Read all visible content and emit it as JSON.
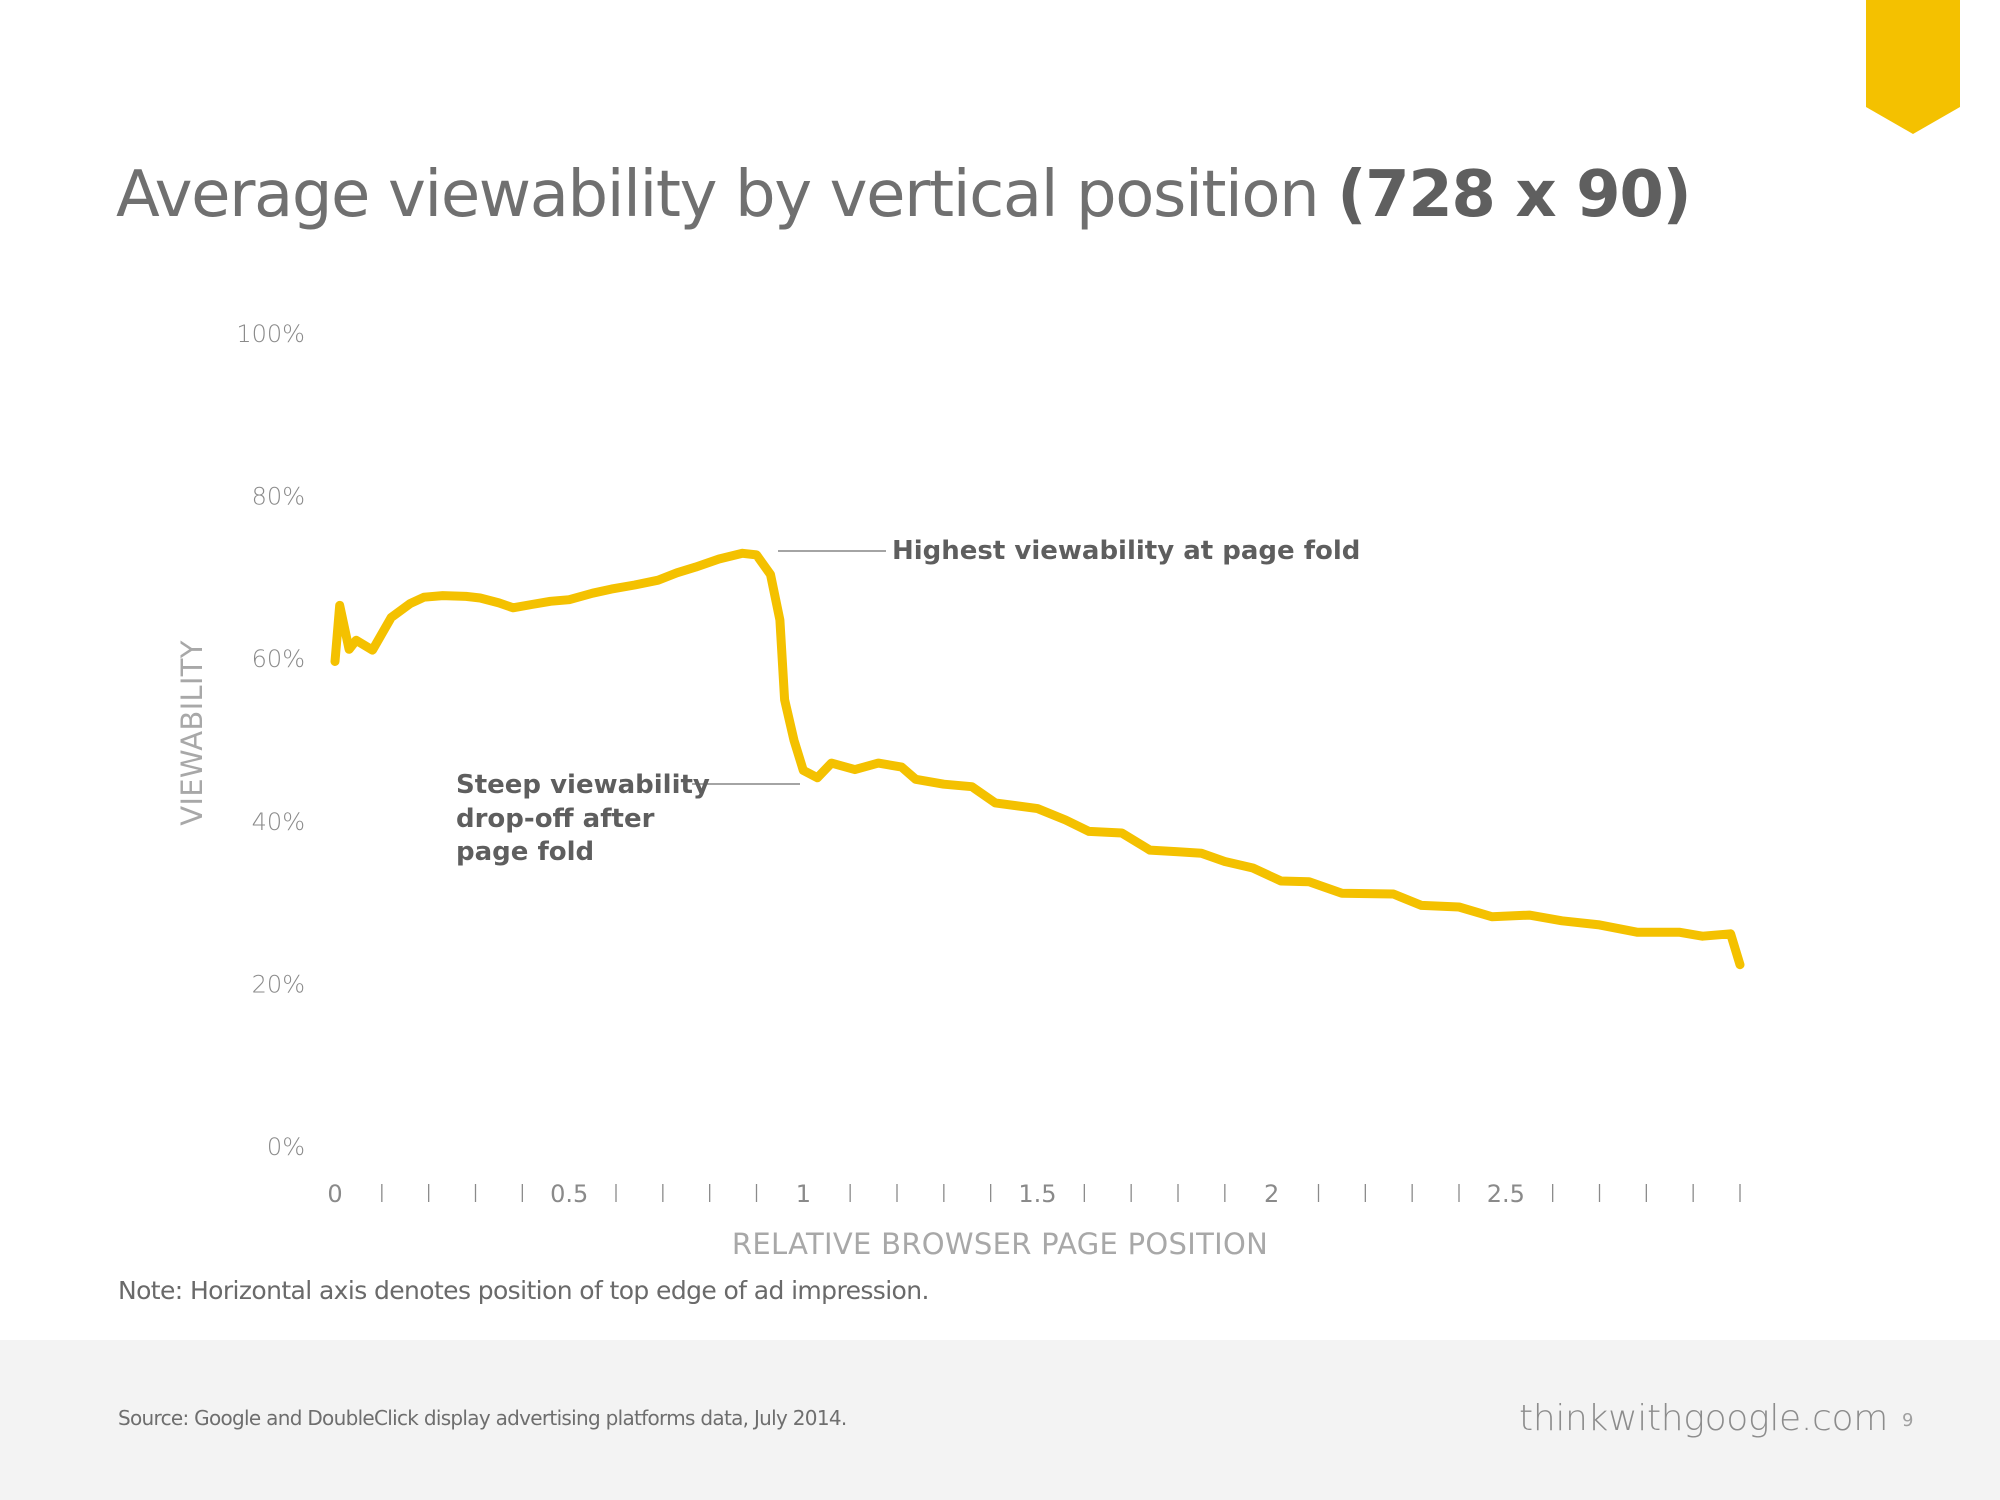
{
  "header": {
    "title_light": "Average viewability by vertical position ",
    "title_bold": "(728 x 90)",
    "accent_color": "#F4C100"
  },
  "note": "Note: Horizontal axis denotes position of top edge of ad impression.",
  "footer": {
    "source": "Source: Google and DoubleClick display advertising platforms data, July 2014.",
    "brand": "thinkwithgoogle.com",
    "page_number": "9"
  },
  "chart_data": {
    "type": "line",
    "title": "Average viewability by vertical position (728 x 90)",
    "xlabel": "RELATIVE BROWSER PAGE POSITION",
    "ylabel": "VIEWABILITY",
    "xlim": [
      0,
      3
    ],
    "ylim": [
      0,
      100
    ],
    "grid": false,
    "y_ticks": [
      0,
      20,
      40,
      60,
      80,
      100
    ],
    "y_tick_labels": [
      "0%",
      "20%",
      "40%",
      "60%",
      "80%",
      "100%"
    ],
    "x_major_ticks": [
      0,
      0.5,
      1,
      1.5,
      2,
      2.5
    ],
    "x_major_tick_labels": [
      "0",
      "0.5",
      "1",
      "1.5",
      "2",
      "2.5"
    ],
    "x_minor_tick_step": 0.1,
    "line_color": "#F4C100",
    "series": [
      {
        "name": "Viewability",
        "x": [
          0.0,
          0.01,
          0.03,
          0.045,
          0.08,
          0.12,
          0.16,
          0.19,
          0.23,
          0.28,
          0.31,
          0.35,
          0.38,
          0.42,
          0.46,
          0.5,
          0.55,
          0.59,
          0.64,
          0.69,
          0.73,
          0.77,
          0.82,
          0.87,
          0.9,
          0.93,
          0.95,
          0.96,
          0.98,
          1.0,
          1.03,
          1.06,
          1.11,
          1.16,
          1.21,
          1.24,
          1.3,
          1.36,
          1.41,
          1.5,
          1.56,
          1.61,
          1.68,
          1.74,
          1.8,
          1.85,
          1.9,
          1.96,
          2.02,
          2.08,
          2.15,
          2.26,
          2.32,
          2.4,
          2.47,
          2.55,
          2.62,
          2.7,
          2.78,
          2.87,
          2.92,
          2.98,
          3.0
        ],
        "values": [
          59.6,
          66.5,
          61.1,
          62.2,
          61.0,
          65.0,
          66.7,
          67.5,
          67.7,
          67.6,
          67.4,
          66.8,
          66.2,
          66.6,
          67.0,
          67.2,
          68.0,
          68.5,
          69.0,
          69.6,
          70.5,
          71.2,
          72.2,
          72.9,
          72.7,
          70.3,
          64.7,
          54.9,
          49.9,
          46.2,
          45.3,
          47.1,
          46.3,
          47.1,
          46.6,
          45.1,
          44.5,
          44.2,
          42.2,
          41.5,
          40.1,
          38.7,
          38.5,
          36.4,
          36.2,
          36.0,
          35.0,
          34.2,
          32.6,
          32.5,
          31.1,
          31.0,
          29.6,
          29.4,
          28.2,
          28.4,
          27.7,
          27.2,
          26.3,
          26.3,
          25.8,
          26.1,
          22.3
        ]
      }
    ],
    "annotations": [
      {
        "text": "Highest viewability at page fold",
        "x": 0.87,
        "y": 72.9
      },
      {
        "text": "Steep viewability drop-off after page fold",
        "lines": [
          "Steep viewability",
          "drop-off after",
          "page fold"
        ],
        "x": 1.0,
        "y": 45.3
      }
    ]
  }
}
